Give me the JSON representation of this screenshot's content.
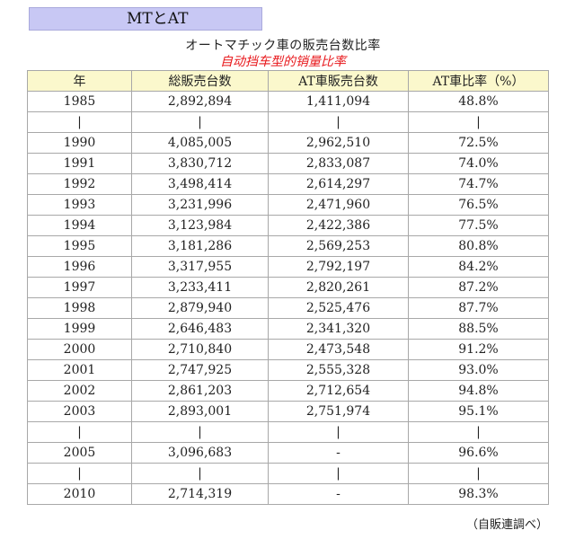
{
  "header": {
    "label": "MTとAT"
  },
  "title": {
    "jp": "オートマチック車の販売台数比率",
    "cn": "自动挡车型的销量比率"
  },
  "table": {
    "headers": [
      "年",
      "総販売台数",
      "AT車販売台数",
      "AT車比率（%）"
    ],
    "rows": [
      [
        "1985",
        "2,892,894",
        "1,411,094",
        "48.8%"
      ],
      [
        "|",
        "|",
        "|",
        "|"
      ],
      [
        "1990",
        "4,085,005",
        "2,962,510",
        "72.5%"
      ],
      [
        "1991",
        "3,830,712",
        "2,833,087",
        "74.0%"
      ],
      [
        "1992",
        "3,498,414",
        "2,614,297",
        "74.7%"
      ],
      [
        "1993",
        "3,231,996",
        "2,471,960",
        "76.5%"
      ],
      [
        "1994",
        "3,123,984",
        "2,422,386",
        "77.5%"
      ],
      [
        "1995",
        "3,181,286",
        "2,569,253",
        "80.8%"
      ],
      [
        "1996",
        "3,317,955",
        "2,792,197",
        "84.2%"
      ],
      [
        "1997",
        "3,233,411",
        "2,820,261",
        "87.2%"
      ],
      [
        "1998",
        "2,879,940",
        "2,525,476",
        "87.7%"
      ],
      [
        "1999",
        "2,646,483",
        "2,341,320",
        "88.5%"
      ],
      [
        "2000",
        "2,710,840",
        "2,473,548",
        "91.2%"
      ],
      [
        "2001",
        "2,747,925",
        "2,555,328",
        "93.0%"
      ],
      [
        "2002",
        "2,861,203",
        "2,712,654",
        "94.8%"
      ],
      [
        "2003",
        "2,893,001",
        "2,751,974",
        "95.1%"
      ],
      [
        "|",
        "|",
        "|",
        "|"
      ],
      [
        "2005",
        "3,096,683",
        "-",
        "96.6%"
      ],
      [
        "|",
        "|",
        "|",
        "|"
      ],
      [
        "2010",
        "2,714,319",
        "-",
        "98.3%"
      ]
    ]
  },
  "source": "（自販連調べ）"
}
